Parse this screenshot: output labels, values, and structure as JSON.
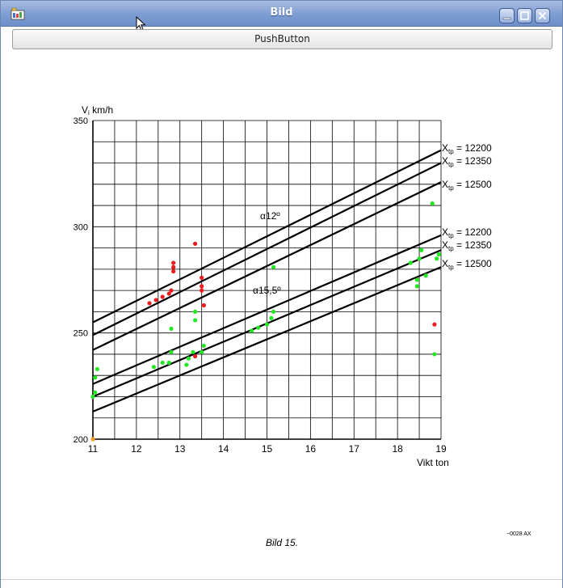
{
  "window": {
    "title": "Bild"
  },
  "toolbar": {
    "push_button_label": "PushButton"
  },
  "figure": {
    "y_axis_label": "V",
    "y_axis_label_sub": "i",
    "y_axis_unit": "km/h",
    "x_axis_label": "Vikt ton",
    "caption": "Bild 15.",
    "corner_code": "−0028 AX",
    "group_label_1": "α12º",
    "group_label_2": "α15,5º",
    "y_ticks": [
      "350",
      "300",
      "250",
      "200"
    ],
    "x_ticks": [
      "11",
      "12",
      "13",
      "14",
      "15",
      "16",
      "17",
      "18",
      "19"
    ],
    "line_labels": [
      {
        "var": "X",
        "sub": "tp",
        "value": "= 12200"
      },
      {
        "var": "X",
        "sub": "tp",
        "value": "= 12350"
      },
      {
        "var": "X",
        "sub": "tp",
        "value": "= 12500"
      },
      {
        "var": "X",
        "sub": "tp",
        "value": "= 12200"
      },
      {
        "var": "X",
        "sub": "tp",
        "value": "= 12350"
      },
      {
        "var": "X",
        "sub": "tp",
        "value": "= 12500"
      }
    ]
  },
  "chart_data": {
    "type": "line",
    "xlabel": "Vikt ton",
    "ylabel": "Vi km/h",
    "xlim": [
      11,
      19
    ],
    "ylim": [
      200,
      350
    ],
    "grid": true,
    "series": [
      {
        "name": "α12º Xtp = 12200",
        "x": [
          11,
          19
        ],
        "y": [
          255,
          336
        ]
      },
      {
        "name": "α12º Xtp = 12350",
        "x": [
          11,
          19
        ],
        "y": [
          249,
          330
        ]
      },
      {
        "name": "α12º Xtp = 12500",
        "x": [
          11,
          19
        ],
        "y": [
          242,
          321
        ]
      },
      {
        "name": "α15,5º Xtp = 12200",
        "x": [
          11,
          19
        ],
        "y": [
          226,
          296
        ]
      },
      {
        "name": "α15,5º Xtp = 12350",
        "x": [
          11,
          19
        ],
        "y": [
          220,
          289
        ]
      },
      {
        "name": "α15,5º Xtp = 12500",
        "x": [
          11,
          19
        ],
        "y": [
          213,
          281
        ]
      }
    ],
    "markers": {
      "red": [
        [
          12.3,
          264
        ],
        [
          12.45,
          265.5
        ],
        [
          12.6,
          267
        ],
        [
          12.75,
          268.5
        ],
        [
          12.8,
          270
        ],
        [
          12.85,
          283
        ],
        [
          12.85,
          281
        ],
        [
          12.85,
          279
        ],
        [
          13.35,
          292
        ],
        [
          13.5,
          276
        ],
        [
          13.5,
          272
        ],
        [
          13.5,
          270
        ],
        [
          13.55,
          263
        ],
        [
          13.35,
          239
        ],
        [
          18.85,
          254
        ]
      ],
      "green": [
        [
          11,
          220
        ],
        [
          11.05,
          222
        ],
        [
          11.05,
          229
        ],
        [
          11.1,
          233
        ],
        [
          12.4,
          234
        ],
        [
          12.6,
          236
        ],
        [
          12.75,
          236
        ],
        [
          12.8,
          241
        ],
        [
          12.8,
          252
        ],
        [
          13.15,
          235
        ],
        [
          13.2,
          238
        ],
        [
          13.3,
          241
        ],
        [
          13.35,
          256
        ],
        [
          13.35,
          260
        ],
        [
          13.5,
          241
        ],
        [
          13.55,
          244
        ],
        [
          14.65,
          251
        ],
        [
          14.8,
          252.5
        ],
        [
          15,
          254
        ],
        [
          15.1,
          257
        ],
        [
          15.15,
          260
        ],
        [
          15.15,
          281
        ],
        [
          18.3,
          283
        ],
        [
          18.5,
          285
        ],
        [
          18.55,
          289
        ],
        [
          18.45,
          275
        ],
        [
          18.45,
          272
        ],
        [
          18.65,
          277
        ],
        [
          18.9,
          285
        ],
        [
          18.95,
          287
        ],
        [
          18.8,
          311
        ],
        [
          18.85,
          240
        ]
      ],
      "orange": [
        [
          11,
          200
        ]
      ]
    }
  },
  "colors": {
    "red_markers": "#ee1c1c",
    "green_markers": "#22e822",
    "orange_marker": "#f59a23"
  }
}
